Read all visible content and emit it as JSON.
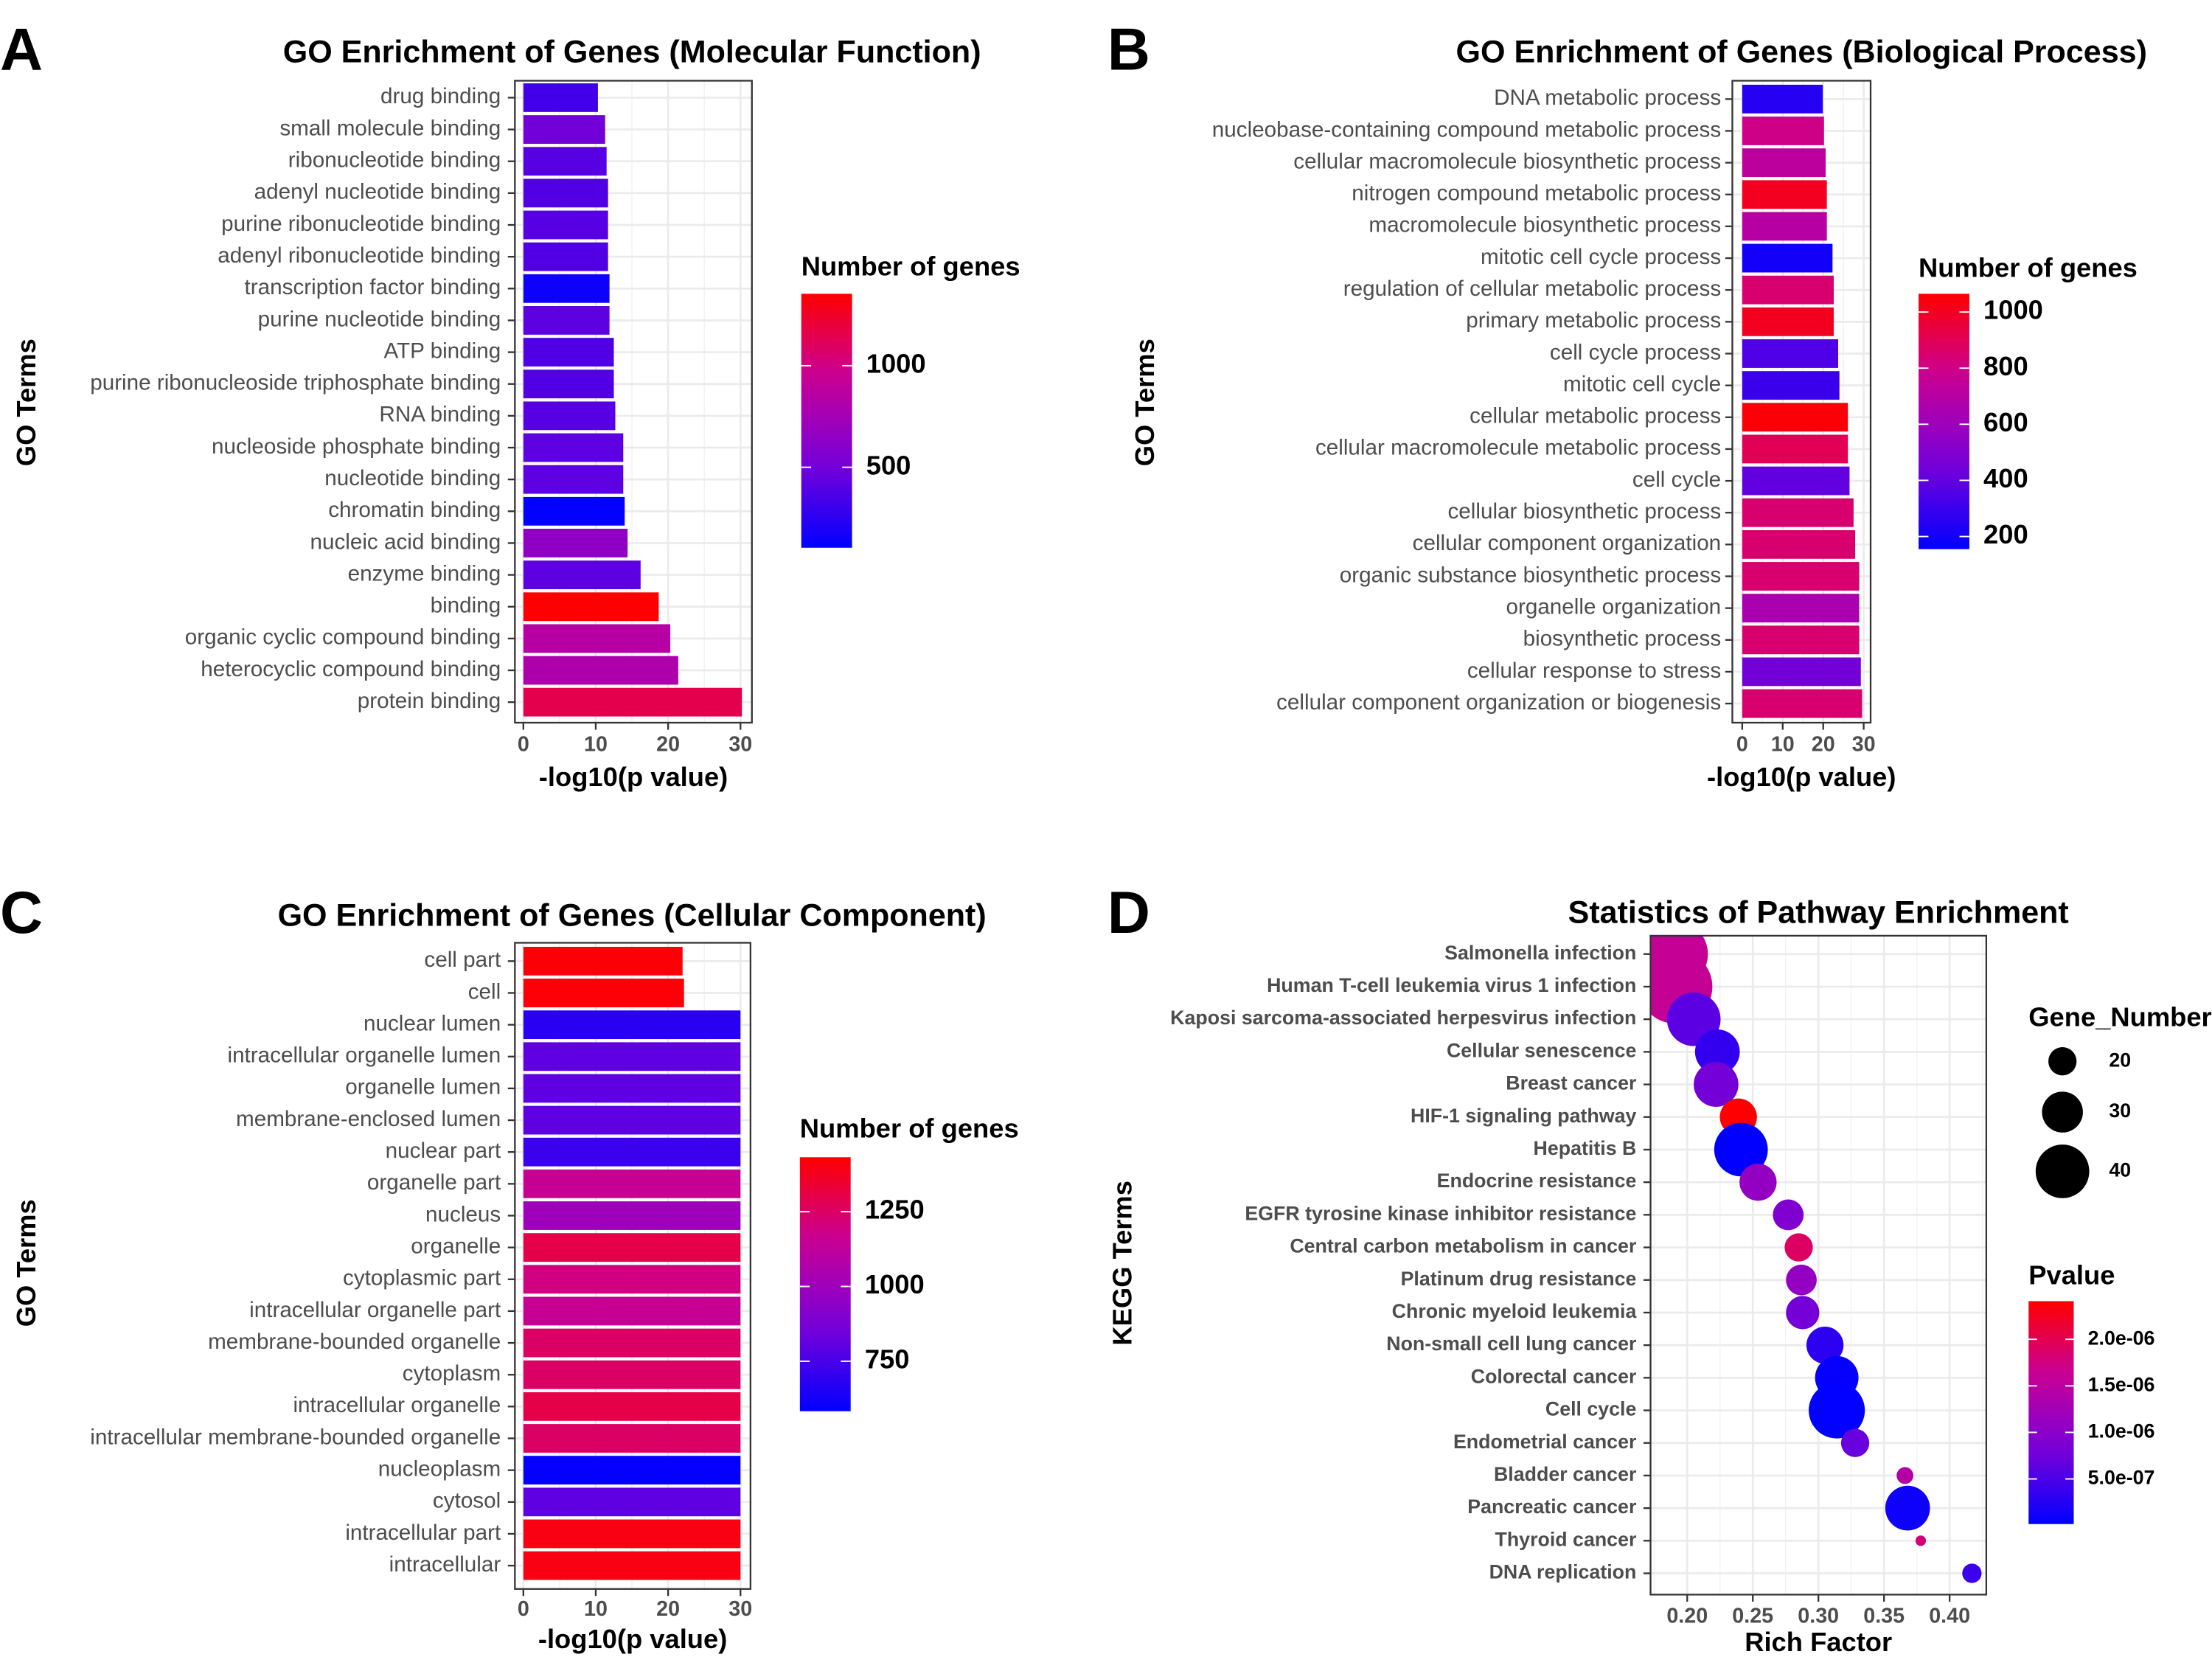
{
  "colors": {
    "low": "#0000FF",
    "high": "#FF0000",
    "grid": "#EBEBEB",
    "border": "#333333"
  },
  "chart_data": [
    {
      "panel": "A",
      "type": "bar",
      "orientation": "horizontal",
      "title": "GO Enrichment of Genes (Molecular Function)",
      "xlabel": "-log10(p value)",
      "ylabel": "GO Terms",
      "xlim": [
        0,
        30.5
      ],
      "xticks": [
        "0",
        "10",
        "20",
        "30"
      ],
      "grid": true,
      "legend": {
        "title": "Number of genes",
        "ticks": [
          "1000",
          "500"
        ],
        "tick_values": [
          1000,
          500
        ],
        "range": [
          104,
          1354
        ],
        "placement": "right"
      },
      "categories": [
        "drug binding",
        "small molecule binding",
        "ribonucleotide binding",
        "adenyl nucleotide binding",
        "purine ribonucleotide binding",
        "adenyl ribonucleotide binding",
        "transcription factor binding",
        "purine nucleotide binding",
        "ATP binding",
        "purine ribonucleoside triphosphate binding",
        "RNA binding",
        "nucleoside phosphate binding",
        "nucleotide binding",
        "chromatin binding",
        "nucleic acid binding",
        "enzyme binding",
        "binding",
        "organic cyclic compound binding",
        "heterocyclic compound binding",
        "protein binding"
      ],
      "values": [
        10.3,
        11.3,
        11.5,
        11.7,
        11.7,
        11.7,
        11.9,
        11.9,
        12.5,
        12.5,
        12.7,
        13.8,
        13.8,
        14.0,
        14.4,
        16.2,
        18.7,
        20.3,
        21.4,
        30.2
      ],
      "gene_counts": [
        330,
        500,
        400,
        380,
        400,
        380,
        150,
        420,
        380,
        380,
        400,
        420,
        420,
        110,
        650,
        420,
        1350,
        850,
        800,
        1150
      ]
    },
    {
      "panel": "B",
      "type": "bar",
      "orientation": "horizontal",
      "title": "GO Enrichment of Genes (Biological Process)",
      "xlabel": "-log10(p value)",
      "ylabel": "GO Terms",
      "xlim": [
        0,
        30.5
      ],
      "xticks": [
        "0",
        "10",
        "20",
        "30"
      ],
      "grid": true,
      "legend": {
        "title": "Number of genes",
        "ticks": [
          "1000",
          "800",
          "600",
          "400",
          "200"
        ],
        "tick_values": [
          1000,
          800,
          600,
          400,
          200
        ],
        "range": [
          155,
          1065
        ],
        "placement": "right"
      },
      "categories": [
        "DNA metabolic process",
        "nucleobase-containing compound metabolic process",
        "cellular macromolecule biosynthetic process",
        "nitrogen compound metabolic process",
        "macromolecule biosynthetic process",
        "mitotic cell cycle process",
        "regulation of cellular metabolic process",
        "primary metabolic process",
        "cell cycle process",
        "mitotic cell cycle",
        "cellular metabolic process",
        "cellular macromolecule metabolic process",
        "cell cycle",
        "cellular biosynthetic process",
        "cellular component organization",
        "organic substance biosynthetic process",
        "organelle organization",
        "biosynthetic process",
        "cellular response to stress",
        "cellular component organization or biogenesis"
      ],
      "values": [
        19.9,
        20.2,
        20.6,
        20.9,
        20.9,
        22.3,
        22.6,
        22.6,
        23.7,
        24.0,
        26.1,
        26.1,
        26.5,
        27.5,
        27.9,
        28.9,
        28.9,
        28.9,
        29.3,
        29.6
      ],
      "gene_counts": [
        250,
        800,
        720,
        1000,
        700,
        200,
        850,
        1000,
        350,
        300,
        1050,
        900,
        400,
        850,
        850,
        850,
        650,
        850,
        450,
        850
      ]
    },
    {
      "panel": "C",
      "type": "bar",
      "orientation": "horizontal",
      "title": "GO Enrichment of Genes (Cellular Component)",
      "xlabel": "-log10(p value)",
      "ylabel": "GO Terms",
      "xlim": [
        0,
        30.5
      ],
      "xticks": [
        "0",
        "10",
        "20",
        "30"
      ],
      "grid": true,
      "legend": {
        "title": "Number of genes",
        "ticks": [
          "1250",
          "1000",
          "750"
        ],
        "tick_values": [
          1250,
          1000,
          750
        ],
        "range": [
          583,
          1432
        ],
        "placement": "right"
      },
      "categories": [
        "cell part",
        "cell",
        "nuclear lumen",
        "intracellular organelle lumen",
        "organelle lumen",
        "membrane-enclosed lumen",
        "nuclear part",
        "organelle part",
        "nucleus",
        "organelle",
        "cytoplasmic part",
        "intracellular organelle part",
        "membrane-bounded organelle",
        "cytoplasm",
        "intracellular organelle",
        "intracellular membrane-bounded organelle",
        "nucleoplasm",
        "cytosol",
        "intracellular part",
        "intracellular"
      ],
      "values": [
        22.0,
        22.2,
        30.0,
        30.0,
        30.0,
        30.0,
        30.0,
        30.0,
        30.0,
        30.0,
        30.0,
        30.0,
        30.0,
        30.0,
        30.0,
        30.0,
        30.0,
        30.0,
        30.0,
        30.0
      ],
      "gene_counts": [
        1420,
        1420,
        680,
        800,
        800,
        800,
        720,
        1150,
        1000,
        1300,
        1200,
        1150,
        1250,
        1250,
        1300,
        1250,
        590,
        800,
        1400,
        1400
      ]
    },
    {
      "panel": "D",
      "type": "scatter",
      "title": "Statistics of Pathway Enrichment",
      "xlabel": "Rich Factor",
      "ylabel": "KEGG Terms",
      "xlim": [
        0.172,
        0.427
      ],
      "xticks": [
        "0.20",
        "0.25",
        "0.30",
        "0.35",
        "0.40"
      ],
      "xtick_values": [
        0.2,
        0.25,
        0.3,
        0.35,
        0.4
      ],
      "grid": true,
      "size_legend": {
        "title": "Gene_Number",
        "values": [
          20,
          30,
          40
        ],
        "labels": [
          "20",
          "30",
          "40"
        ],
        "placement": "right"
      },
      "color_legend": {
        "title": "Pvalue",
        "ticks": [
          "2.0e-06",
          "1.5e-06",
          "1.0e-06",
          "5.0e-07"
        ],
        "tick_values": [
          2e-06,
          1.5e-06,
          1e-06,
          5e-07
        ],
        "range": [
          1.5e-08,
          2.41e-06
        ],
        "placement": "right"
      },
      "categories": [
        "Salmonella infection",
        "Human T-cell leukemia virus 1 infection",
        "Kaposi sarcoma-associated herpesvirus infection",
        "Cellular senescence",
        "Breast cancer",
        "HIF-1 signaling pathway",
        "Hepatitis B",
        "Endocrine resistance",
        "EGFR tyrosine kinase inhibitor resistance",
        "Central carbon metabolism in cancer",
        "Platinum drug resistance",
        "Chronic myeloid leukemia",
        "Non-small cell lung cancer",
        "Colorectal cancer",
        "Cell cycle",
        "Endometrial cancer",
        "Bladder cancer",
        "Pancreatic cancer",
        "Thyroid cancer",
        "DNA replication"
      ],
      "rich_factor": [
        0.19,
        0.191,
        0.205,
        0.223,
        0.222,
        0.239,
        0.241,
        0.254,
        0.277,
        0.285,
        0.287,
        0.288,
        0.305,
        0.314,
        0.314,
        0.328,
        0.366,
        0.368,
        0.378,
        0.417
      ],
      "gene_number": [
        51,
        56,
        40,
        33,
        33,
        27,
        40,
        27,
        22,
        20,
        22,
        24,
        27,
        32,
        42,
        20,
        11,
        33,
        6,
        13
      ],
      "pvalue": [
        1.6e-06,
        1.6e-06,
        6e-07,
        3.5e-07,
        8e-07,
        2.4e-06,
        2e-08,
        1.1e-06,
        9e-07,
        1.9e-06,
        1.1e-06,
        8e-07,
        3e-07,
        5e-08,
        3e-08,
        7e-07,
        1.4e-06,
        1e-07,
        1.8e-06,
        4e-07
      ]
    }
  ]
}
